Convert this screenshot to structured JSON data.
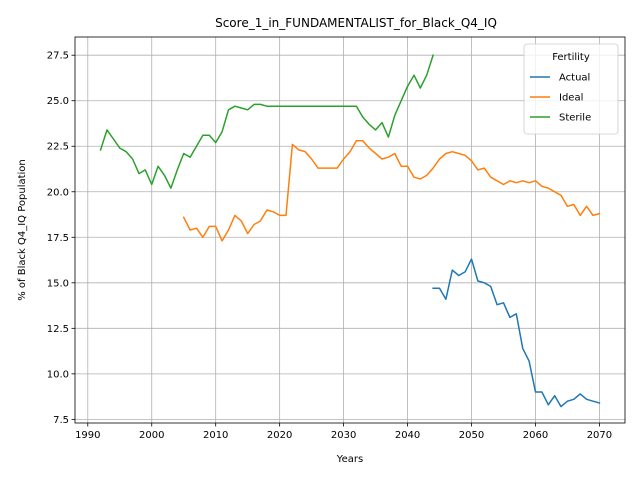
{
  "chart_data": {
    "type": "line",
    "title": "Score_1_in_FUNDAMENTALIST_for_Black_Q4_IQ",
    "xlabel": "Years",
    "ylabel": "% of Black Q4_IQ Population",
    "xlim": [
      1988,
      2074
    ],
    "ylim": [
      7.3,
      28.5
    ],
    "xticks": [
      1990,
      2000,
      2010,
      2020,
      2030,
      2040,
      2050,
      2060,
      2070
    ],
    "yticks": [
      7.5,
      10.0,
      12.5,
      15.0,
      17.5,
      20.0,
      22.5,
      25.0,
      27.5
    ],
    "xtick_labels": [
      "1990",
      "2000",
      "2010",
      "2020",
      "2030",
      "2040",
      "2050",
      "2060",
      "2070"
    ],
    "ytick_labels": [
      "7.5",
      "10.0",
      "12.5",
      "15.0",
      "17.5",
      "20.0",
      "22.5",
      "25.0",
      "27.5"
    ],
    "grid": true,
    "legend": {
      "title": "Fertility",
      "position": "top-right"
    },
    "series": [
      {
        "name": "Actual",
        "color": "#1f77b4",
        "x": [
          2044,
          2045,
          2046,
          2047,
          2048,
          2049,
          2050,
          2051,
          2052,
          2053,
          2054,
          2055,
          2056,
          2057,
          2058,
          2059,
          2060,
          2061,
          2062,
          2063,
          2064,
          2065,
          2066,
          2067,
          2068,
          2069,
          2070
        ],
        "y": [
          14.7,
          14.7,
          14.1,
          15.7,
          15.4,
          15.6,
          16.3,
          15.1,
          15.0,
          14.8,
          13.8,
          13.9,
          13.1,
          13.3,
          11.4,
          10.7,
          9.0,
          9.0,
          8.3,
          8.8,
          8.2,
          8.5,
          8.6,
          8.9,
          8.6,
          8.5,
          8.4
        ]
      },
      {
        "name": "Ideal",
        "color": "#ff7f0e",
        "x": [
          2005,
          2006,
          2007,
          2008,
          2009,
          2010,
          2011,
          2012,
          2013,
          2014,
          2015,
          2016,
          2017,
          2018,
          2019,
          2020,
          2021,
          2022,
          2023,
          2024,
          2025,
          2026,
          2027,
          2028,
          2029,
          2030,
          2031,
          2032,
          2033,
          2034,
          2035,
          2036,
          2037,
          2038,
          2039,
          2040,
          2041,
          2042,
          2043,
          2044,
          2045,
          2046,
          2047,
          2048,
          2049,
          2050,
          2051,
          2052,
          2053,
          2054,
          2055,
          2056,
          2057,
          2058,
          2059,
          2060,
          2061,
          2062,
          2063,
          2064,
          2065,
          2066,
          2067,
          2068,
          2069,
          2070
        ],
        "y": [
          18.6,
          17.9,
          18.0,
          17.5,
          18.1,
          18.1,
          17.3,
          17.9,
          18.7,
          18.4,
          17.7,
          18.2,
          18.4,
          19.0,
          18.9,
          18.7,
          18.7,
          22.6,
          22.3,
          22.2,
          21.8,
          21.3,
          21.3,
          21.3,
          21.3,
          21.8,
          22.2,
          22.8,
          22.8,
          22.4,
          22.1,
          21.8,
          21.9,
          22.1,
          21.4,
          21.4,
          20.8,
          20.7,
          20.9,
          21.3,
          21.8,
          22.1,
          22.2,
          22.1,
          22.0,
          21.7,
          21.2,
          21.3,
          20.8,
          20.6,
          20.4,
          20.6,
          20.5,
          20.6,
          20.5,
          20.6,
          20.3,
          20.2,
          20.0,
          19.8,
          19.2,
          19.3,
          18.7,
          19.2,
          18.7,
          18.8
        ]
      },
      {
        "name": "Sterile",
        "color": "#2ca02c",
        "x": [
          1992,
          1993,
          1994,
          1995,
          1996,
          1997,
          1998,
          1999,
          2000,
          2001,
          2002,
          2003,
          2004,
          2005,
          2006,
          2007,
          2008,
          2009,
          2010,
          2011,
          2012,
          2013,
          2014,
          2015,
          2016,
          2017,
          2018,
          2019,
          2020,
          2021,
          2022,
          2023,
          2024,
          2025,
          2026,
          2027,
          2028,
          2029,
          2030,
          2031,
          2032,
          2033,
          2034,
          2035,
          2036,
          2037,
          2038,
          2039,
          2040,
          2041,
          2042,
          2043,
          2044
        ],
        "y": [
          22.3,
          23.4,
          22.9,
          22.4,
          22.2,
          21.8,
          21.0,
          21.2,
          20.4,
          21.4,
          20.9,
          20.2,
          21.2,
          22.1,
          21.9,
          22.5,
          23.1,
          23.1,
          22.7,
          23.3,
          24.5,
          24.7,
          24.6,
          24.5,
          24.8,
          24.8,
          24.7,
          24.7,
          24.7,
          24.7,
          24.7,
          24.7,
          24.7,
          24.7,
          24.7,
          24.7,
          24.7,
          24.7,
          24.7,
          24.7,
          24.7,
          24.1,
          23.7,
          23.4,
          23.8,
          23.0,
          24.2,
          25.0,
          25.8,
          26.4,
          25.7,
          26.4,
          27.5
        ]
      }
    ]
  }
}
